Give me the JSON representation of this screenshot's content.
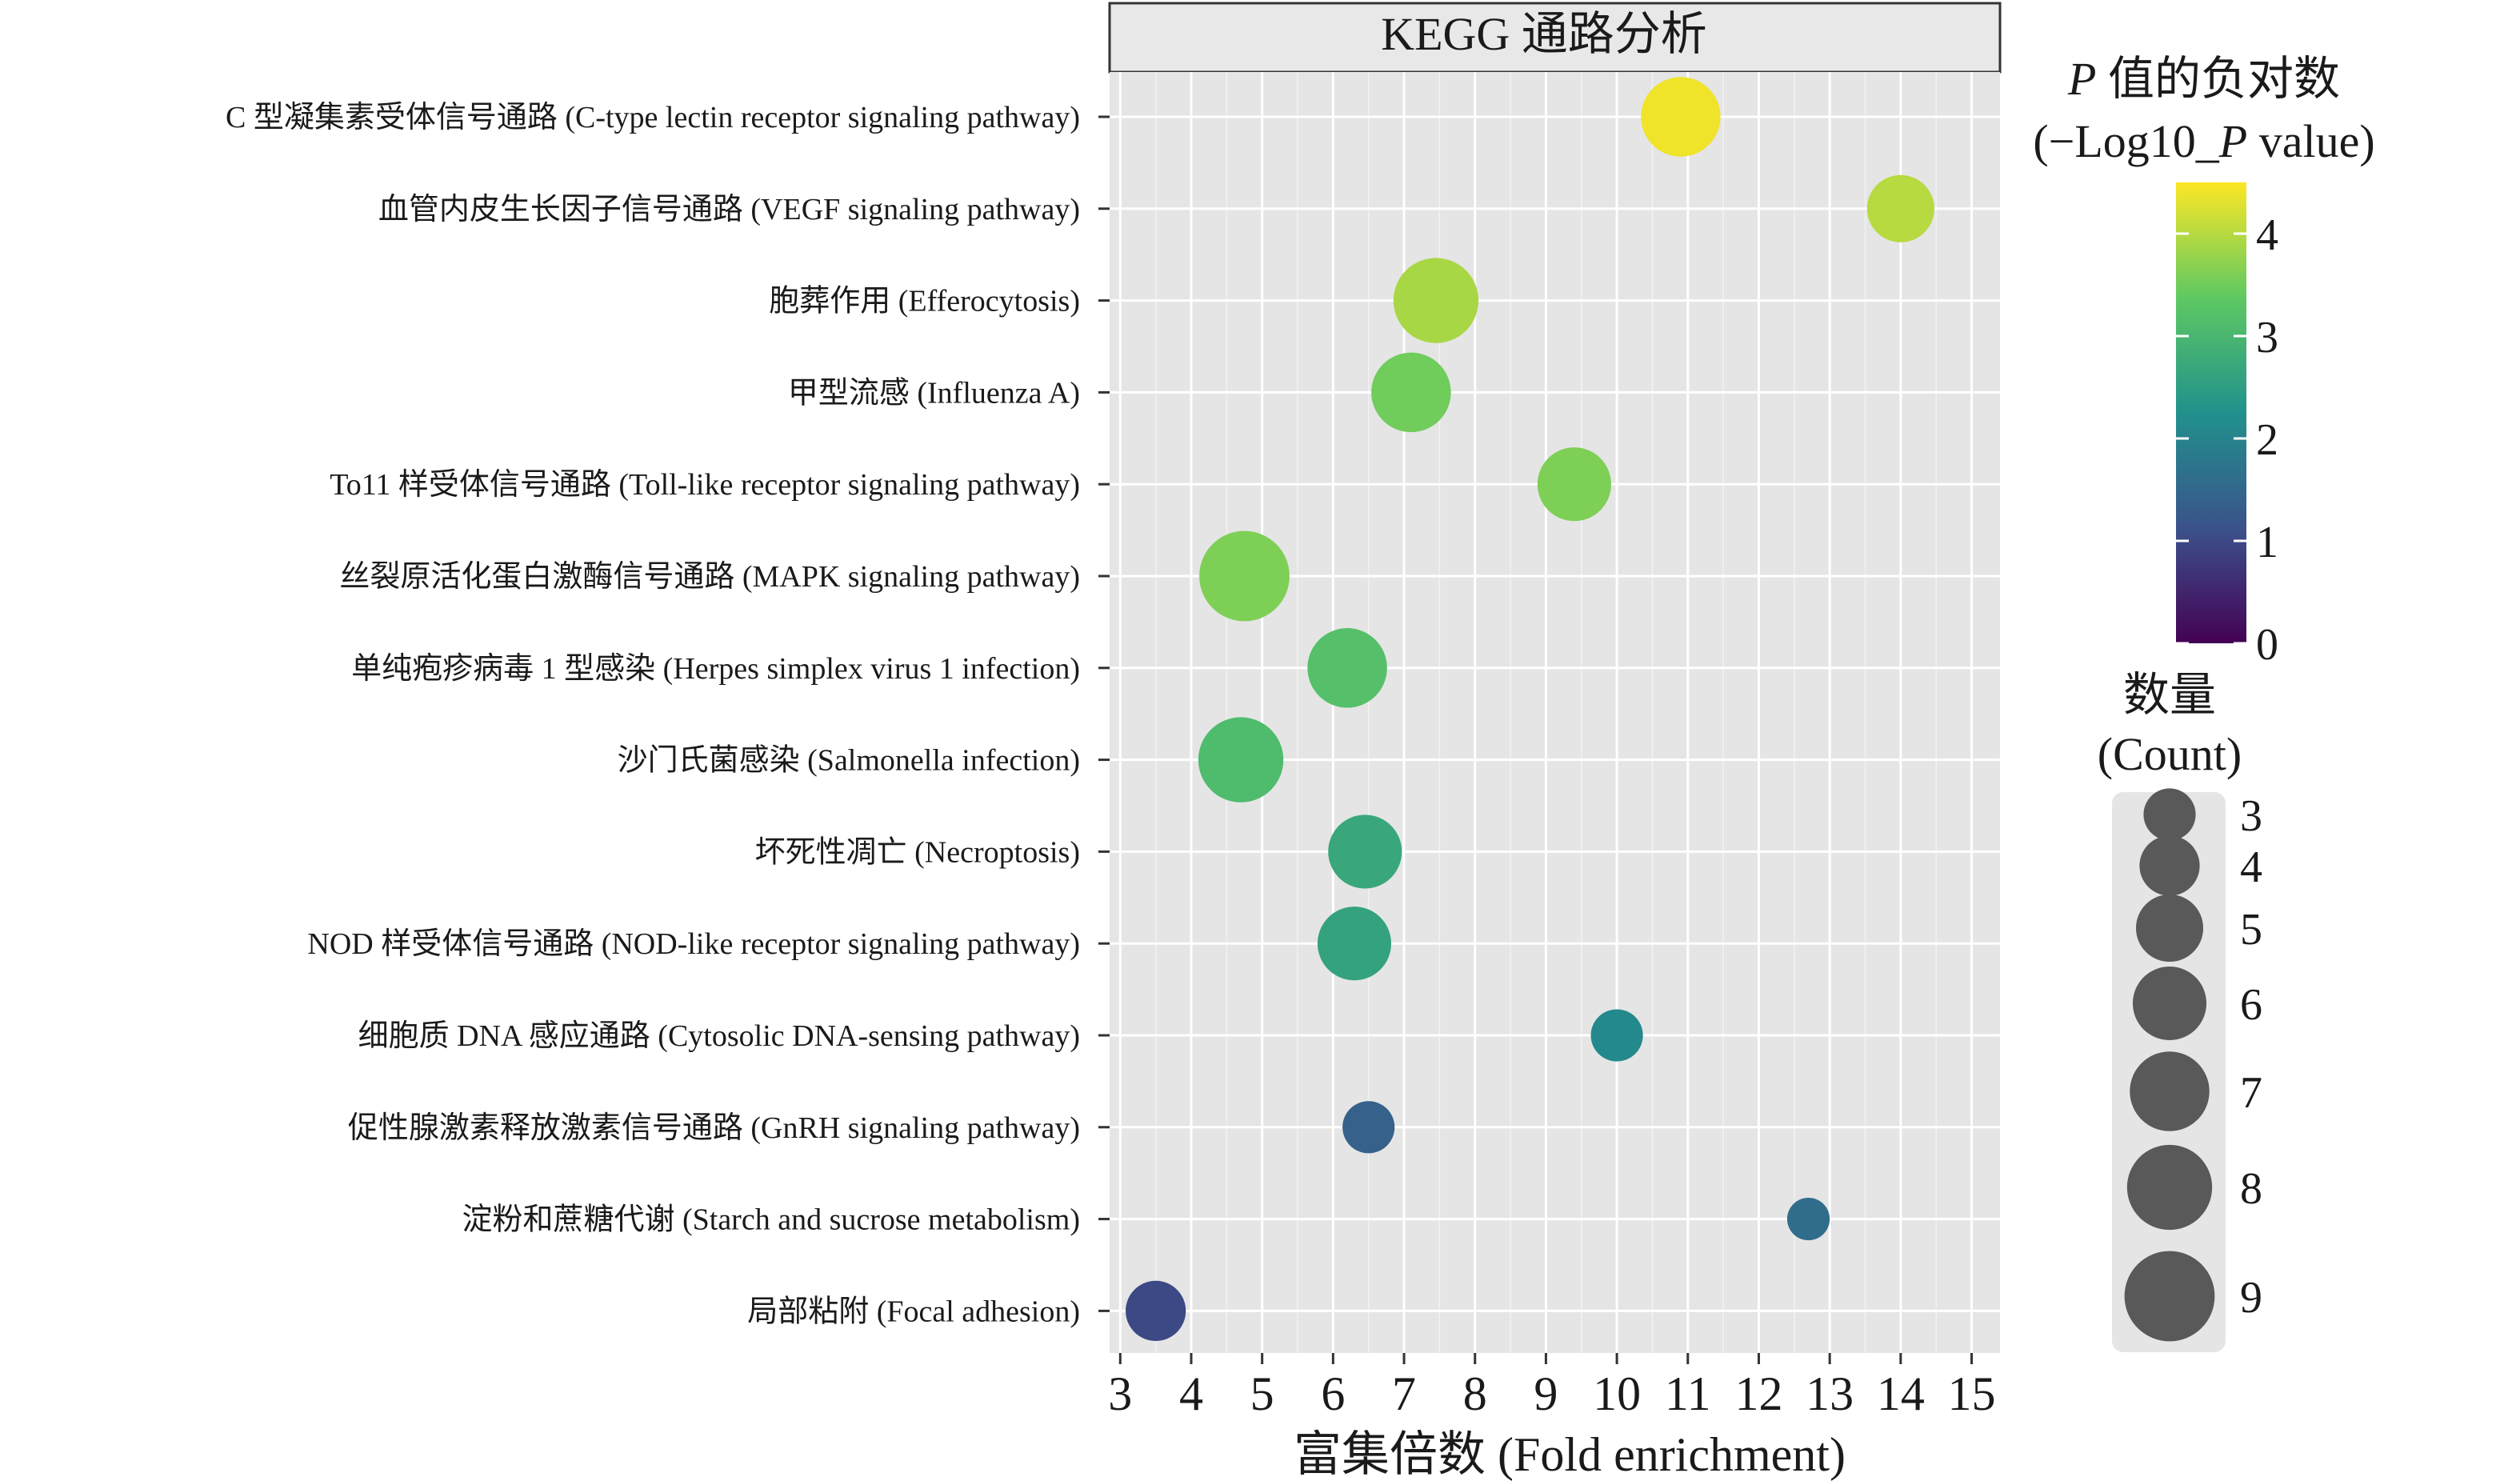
{
  "chart_data": {
    "type": "scatter",
    "title": "KEGG 通路分析",
    "xlabel": "富集倍数 (Fold enrichment)",
    "ylabel": "",
    "xlim": [
      2.85,
      15.4
    ],
    "xticks": [
      3,
      4,
      5,
      6,
      7,
      8,
      9,
      10,
      11,
      12,
      13,
      14,
      15
    ],
    "grid": true,
    "categories": [
      "C 型凝集素受体信号通路 (C-type lectin receptor signaling pathway)",
      "血管内皮生长因子信号通路 (VEGF signaling pathway)",
      "胞葬作用 (Efferocytosis)",
      "甲型流感 (Influenza A)",
      "To11 样受体信号通路 (Toll-like receptor signaling pathway)",
      "丝裂原活化蛋白激酶信号通路 (MAPK signaling pathway)",
      "单纯疱疹病毒 1 型感染 (Herpes simplex virus 1 infection)",
      "沙门氏菌感染 (Salmonella infection)",
      "坏死性凋亡 (Necroptosis)",
      "NOD 样受体信号通路 (NOD-like receptor signaling pathway)",
      "细胞质 DNA 感应通路 (Cytosolic DNA-sensing pathway)",
      "促性腺激素释放激素信号通路 (GnRH signaling pathway)",
      "淀粉和蔗糖代谢 (Starch and sucrose metabolism)",
      "局部粘附 (Focal adhesion)"
    ],
    "points": [
      {
        "x": 10.9,
        "neglog10p": 4.4,
        "count": 7
      },
      {
        "x": 14.0,
        "neglog10p": 4.0,
        "count": 5
      },
      {
        "x": 7.45,
        "neglog10p": 3.9,
        "count": 8
      },
      {
        "x": 7.1,
        "neglog10p": 3.5,
        "count": 7
      },
      {
        "x": 9.4,
        "neglog10p": 3.6,
        "count": 6
      },
      {
        "x": 4.75,
        "neglog10p": 3.6,
        "count": 9
      },
      {
        "x": 6.2,
        "neglog10p": 3.2,
        "count": 7
      },
      {
        "x": 4.7,
        "neglog10p": 3.1,
        "count": 8
      },
      {
        "x": 6.45,
        "neglog10p": 2.7,
        "count": 6
      },
      {
        "x": 6.3,
        "neglog10p": 2.6,
        "count": 6
      },
      {
        "x": 10.0,
        "neglog10p": 2.1,
        "count": 3
      },
      {
        "x": 6.5,
        "neglog10p": 1.4,
        "count": 3
      },
      {
        "x": 12.7,
        "neglog10p": 1.6,
        "count": 2
      },
      {
        "x": 3.5,
        "neglog10p": 1.0,
        "count": 4
      }
    ],
    "color_legend": {
      "title_line1_italic": "P",
      "title_line1_rest": " 值的负对数",
      "title_line2_pre": "(−Log10_",
      "title_line2_italic": "P",
      "title_line2_post": " value)",
      "range": [
        0,
        4.5
      ],
      "ticks": [
        0,
        1,
        2,
        3,
        4
      ],
      "colormap": [
        "#440154",
        "#3b528b",
        "#21918c",
        "#5ec962",
        "#fde725"
      ]
    },
    "size_legend": {
      "title_line1": "数量",
      "title_line2": "(Count)",
      "values": [
        3,
        4,
        5,
        6,
        7,
        8,
        9
      ]
    },
    "colors": {
      "panel_bg": "#e5e5e5",
      "grid": "#ffffff",
      "title_strip_bg": "#e8e8e8",
      "size_legend_bg": "#e5e5e5",
      "size_legend_dot": "#595959"
    }
  }
}
